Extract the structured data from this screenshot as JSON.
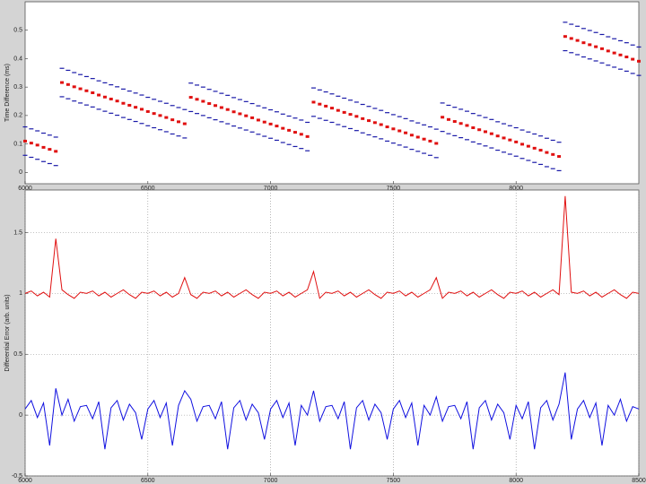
{
  "chart_data": [
    {
      "type": "scatter",
      "y_label": "Time Difference (ms)",
      "x": [
        6000,
        6025,
        6050,
        6075,
        6100,
        6125,
        6150,
        6175,
        6200,
        6225,
        6250,
        6275,
        6300,
        6325,
        6350,
        6375,
        6400,
        6425,
        6450,
        6475,
        6500,
        6525,
        6550,
        6575,
        6600,
        6625,
        6650,
        6675,
        6700,
        6725,
        6750,
        6775,
        6800,
        6825,
        6850,
        6875,
        6900,
        6925,
        6950,
        6975,
        7000,
        7025,
        7050,
        7075,
        7100,
        7125,
        7150,
        7175,
        7200,
        7225,
        7250,
        7275,
        7300,
        7325,
        7350,
        7375,
        7400,
        7425,
        7450,
        7475,
        7500,
        7525,
        7550,
        7575,
        7600,
        7625,
        7650,
        7675,
        7700,
        7725,
        7750,
        7775,
        7800,
        7825,
        7850,
        7875,
        7900,
        7925,
        7950,
        7975,
        8000,
        8025,
        8050,
        8075,
        8100,
        8125,
        8150,
        8175,
        8200,
        8225,
        8250,
        8275,
        8300,
        8325,
        8350,
        8375,
        8400,
        8425,
        8450,
        8475,
        8500
      ],
      "series": [
        {
          "color": "#1a1aa8",
          "values": [
            0.16,
            0.153,
            0.146,
            0.138,
            0.131,
            0.124,
            0.366,
            0.359,
            0.351,
            0.344,
            0.337,
            0.33,
            0.322,
            0.315,
            0.308,
            0.301,
            0.293,
            0.286,
            0.279,
            0.272,
            0.264,
            0.257,
            0.25,
            0.243,
            0.235,
            0.228,
            0.221,
            0.314,
            0.307,
            0.3,
            0.292,
            0.285,
            0.278,
            0.271,
            0.263,
            0.256,
            0.249,
            0.242,
            0.234,
            0.227,
            0.22,
            0.213,
            0.205,
            0.198,
            0.191,
            0.184,
            0.176,
            0.297,
            0.29,
            0.283,
            0.276,
            0.268,
            0.261,
            0.254,
            0.247,
            0.239,
            0.232,
            0.225,
            0.218,
            0.21,
            0.203,
            0.196,
            0.189,
            0.181,
            0.174,
            0.167,
            0.16,
            0.152,
            0.244,
            0.236,
            0.229,
            0.222,
            0.215,
            0.207,
            0.2,
            0.193,
            0.186,
            0.178,
            0.171,
            0.164,
            0.157,
            0.149,
            0.142,
            0.135,
            0.128,
            0.12,
            0.113,
            0.106,
            0.528,
            0.521,
            0.514,
            0.506,
            0.499,
            0.492,
            0.485,
            0.477,
            0.47,
            0.463,
            0.456,
            0.448,
            0.441
          ]
        },
        {
          "color": "#1a1aa8",
          "values": [
            0.06,
            0.053,
            0.046,
            0.038,
            0.031,
            0.024,
            0.266,
            0.259,
            0.251,
            0.244,
            0.237,
            0.23,
            0.222,
            0.215,
            0.208,
            0.201,
            0.193,
            0.186,
            0.179,
            0.172,
            0.164,
            0.157,
            0.15,
            0.143,
            0.135,
            0.128,
            0.121,
            0.214,
            0.207,
            0.2,
            0.192,
            0.185,
            0.178,
            0.171,
            0.163,
            0.156,
            0.149,
            0.142,
            0.134,
            0.127,
            0.12,
            0.113,
            0.105,
            0.098,
            0.091,
            0.084,
            0.076,
            0.197,
            0.19,
            0.183,
            0.176,
            0.168,
            0.161,
            0.154,
            0.147,
            0.139,
            0.132,
            0.125,
            0.118,
            0.11,
            0.103,
            0.096,
            0.089,
            0.081,
            0.074,
            0.067,
            0.06,
            0.052,
            0.144,
            0.136,
            0.129,
            0.122,
            0.115,
            0.107,
            0.1,
            0.093,
            0.086,
            0.078,
            0.071,
            0.064,
            0.057,
            0.049,
            0.042,
            0.035,
            0.028,
            0.02,
            0.013,
            0.006,
            0.428,
            0.421,
            0.414,
            0.406,
            0.399,
            0.392,
            0.385,
            0.377,
            0.37,
            0.363,
            0.356,
            0.348,
            0.341
          ]
        },
        {
          "color": "#e01010",
          "values": [
            0.11,
            0.103,
            0.096,
            0.088,
            0.081,
            0.074,
            0.316,
            0.309,
            0.301,
            0.294,
            0.287,
            0.28,
            0.272,
            0.265,
            0.258,
            0.251,
            0.243,
            0.236,
            0.229,
            0.222,
            0.214,
            0.207,
            0.2,
            0.193,
            0.185,
            0.178,
            0.171,
            0.264,
            0.257,
            0.25,
            0.242,
            0.235,
            0.228,
            0.221,
            0.213,
            0.206,
            0.199,
            0.192,
            0.184,
            0.177,
            0.17,
            0.163,
            0.155,
            0.148,
            0.141,
            0.134,
            0.126,
            0.247,
            0.24,
            0.233,
            0.226,
            0.218,
            0.211,
            0.204,
            0.197,
            0.189,
            0.182,
            0.175,
            0.168,
            0.16,
            0.153,
            0.146,
            0.139,
            0.131,
            0.124,
            0.117,
            0.11,
            0.102,
            0.194,
            0.186,
            0.179,
            0.172,
            0.165,
            0.157,
            0.15,
            0.143,
            0.136,
            0.128,
            0.121,
            0.114,
            0.107,
            0.099,
            0.092,
            0.085,
            0.078,
            0.07,
            0.063,
            0.056,
            0.478,
            0.471,
            0.464,
            0.456,
            0.449,
            0.442,
            0.435,
            0.427,
            0.42,
            0.413,
            0.406,
            0.398,
            0.391
          ]
        }
      ],
      "xlim": [
        6000,
        8500
      ],
      "xticks": [
        6000,
        6500,
        7000,
        7500,
        8000
      ],
      "ylim": [
        -0.04,
        0.6
      ],
      "yticks": [
        0,
        0.1,
        0.2,
        0.3,
        0.4,
        0.5
      ],
      "grid": false
    },
    {
      "type": "line",
      "y_label": "Differential Error (arb. units)",
      "x": [
        6000,
        6025,
        6050,
        6075,
        6100,
        6125,
        6150,
        6175,
        6200,
        6225,
        6250,
        6275,
        6300,
        6325,
        6350,
        6375,
        6400,
        6425,
        6450,
        6475,
        6500,
        6525,
        6550,
        6575,
        6600,
        6625,
        6650,
        6675,
        6700,
        6725,
        6750,
        6775,
        6800,
        6825,
        6850,
        6875,
        6900,
        6925,
        6950,
        6975,
        7000,
        7025,
        7050,
        7075,
        7100,
        7125,
        7150,
        7175,
        7200,
        7225,
        7250,
        7275,
        7300,
        7325,
        7350,
        7375,
        7400,
        7425,
        7450,
        7475,
        7500,
        7525,
        7550,
        7575,
        7600,
        7625,
        7650,
        7675,
        7700,
        7725,
        7750,
        7775,
        7800,
        7825,
        7850,
        7875,
        7900,
        7925,
        7950,
        7975,
        8000,
        8025,
        8050,
        8075,
        8100,
        8125,
        8150,
        8175,
        8200,
        8225,
        8250,
        8275,
        8300,
        8325,
        8350,
        8375,
        8400,
        8425,
        8450,
        8475,
        8500
      ],
      "series": [
        {
          "color": "#e01010",
          "values": [
            1.0,
            1.02,
            0.98,
            1.01,
            0.97,
            1.45,
            1.03,
            0.99,
            0.96,
            1.01,
            1.0,
            1.02,
            0.98,
            1.01,
            0.97,
            1.0,
            1.03,
            0.99,
            0.96,
            1.01,
            1.0,
            1.02,
            0.98,
            1.01,
            0.97,
            1.0,
            1.13,
            0.99,
            0.96,
            1.01,
            1.0,
            1.02,
            0.98,
            1.01,
            0.97,
            1.0,
            1.03,
            0.99,
            0.96,
            1.01,
            1.0,
            1.02,
            0.98,
            1.01,
            0.97,
            1.0,
            1.03,
            1.18,
            0.96,
            1.01,
            1.0,
            1.02,
            0.98,
            1.01,
            0.97,
            1.0,
            1.03,
            0.99,
            0.96,
            1.01,
            1.0,
            1.02,
            0.98,
            1.01,
            0.97,
            1.0,
            1.03,
            1.13,
            0.96,
            1.01,
            1.0,
            1.02,
            0.98,
            1.01,
            0.97,
            1.0,
            1.03,
            0.99,
            0.96,
            1.01,
            1.0,
            1.02,
            0.98,
            1.01,
            0.97,
            1.0,
            1.03,
            0.99,
            1.8,
            1.01,
            1.0,
            1.02,
            0.98,
            1.01,
            0.97,
            1.0,
            1.03,
            0.99,
            0.96,
            1.01,
            1.0
          ]
        },
        {
          "color": "#1010e0",
          "values": [
            0.05,
            0.12,
            -0.02,
            0.1,
            -0.25,
            0.22,
            0.0,
            0.13,
            -0.05,
            0.07,
            0.08,
            -0.03,
            0.11,
            -0.28,
            0.06,
            0.12,
            -0.04,
            0.09,
            0.02,
            -0.2,
            0.05,
            0.12,
            -0.02,
            0.1,
            -0.25,
            0.08,
            0.2,
            0.13,
            -0.05,
            0.07,
            0.08,
            -0.03,
            0.11,
            -0.28,
            0.06,
            0.12,
            -0.04,
            0.09,
            0.02,
            -0.2,
            0.05,
            0.12,
            -0.02,
            0.1,
            -0.25,
            0.08,
            0.0,
            0.2,
            -0.05,
            0.07,
            0.08,
            -0.03,
            0.11,
            -0.28,
            0.06,
            0.12,
            -0.04,
            0.09,
            0.02,
            -0.2,
            0.05,
            0.12,
            -0.02,
            0.1,
            -0.25,
            0.08,
            0.0,
            0.15,
            -0.05,
            0.07,
            0.08,
            -0.03,
            0.11,
            -0.28,
            0.06,
            0.12,
            -0.04,
            0.09,
            0.02,
            -0.2,
            0.08,
            -0.03,
            0.11,
            -0.28,
            0.06,
            0.12,
            -0.04,
            0.09,
            0.35,
            -0.2,
            0.05,
            0.12,
            -0.02,
            0.1,
            -0.25,
            0.08,
            0.0,
            0.13,
            -0.05,
            0.07,
            0.05
          ]
        }
      ],
      "xlim": [
        6000,
        8500
      ],
      "xticks": [
        6000,
        6500,
        7000,
        7500,
        8000,
        8500
      ],
      "ylim": [
        -0.5,
        1.85
      ],
      "yticks": [
        -0.5,
        0,
        0.5,
        1,
        1.5
      ],
      "grid": true
    }
  ]
}
